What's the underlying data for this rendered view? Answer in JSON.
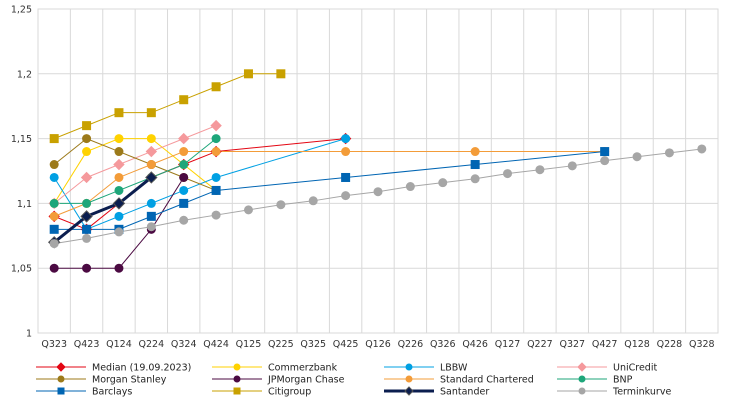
{
  "chart_data": {
    "type": "line",
    "title": "",
    "xlabel": "",
    "ylabel": "",
    "categories": [
      "Q323",
      "Q423",
      "Q124",
      "Q224",
      "Q324",
      "Q424",
      "Q125",
      "Q225",
      "Q325",
      "Q425",
      "Q126",
      "Q226",
      "Q326",
      "Q426",
      "Q127",
      "Q227",
      "Q327",
      "Q427",
      "Q128",
      "Q228",
      "Q328"
    ],
    "ylim": [
      1.0,
      1.25
    ],
    "yticks": [
      1.0,
      1.05,
      1.1,
      1.15,
      1.2,
      1.25
    ],
    "ytick_labels": [
      "1",
      "1,05",
      "1,1",
      "1,15",
      "1,2",
      "1,25"
    ],
    "grid": true,
    "legend_position": "bottom",
    "series": [
      {
        "name": "Median (19.09.2023)",
        "color": "#e30613",
        "marker": "diamond",
        "width": 1,
        "points": [
          [
            0,
            1.09
          ],
          [
            1,
            1.08
          ],
          [
            2,
            1.1
          ],
          [
            3,
            1.12
          ],
          [
            4,
            1.13
          ],
          [
            5,
            1.14
          ],
          [
            9,
            1.15
          ]
        ]
      },
      {
        "name": "Commerzbank",
        "color": "#ffd200",
        "marker": "circle",
        "width": 1,
        "points": [
          [
            0,
            1.1
          ],
          [
            1,
            1.14
          ],
          [
            2,
            1.15
          ],
          [
            3,
            1.15
          ],
          [
            4,
            1.13
          ],
          [
            5,
            1.11
          ]
        ]
      },
      {
        "name": "LBBW",
        "color": "#00a0e3",
        "marker": "circle",
        "width": 1,
        "points": [
          [
            0,
            1.12
          ],
          [
            1,
            1.08
          ],
          [
            2,
            1.09
          ],
          [
            3,
            1.1
          ],
          [
            4,
            1.11
          ],
          [
            5,
            1.12
          ],
          [
            9,
            1.15
          ]
        ]
      },
      {
        "name": "UniCredit",
        "color": "#f5999c",
        "marker": "diamond",
        "width": 1,
        "points": [
          [
            0,
            1.1
          ],
          [
            1,
            1.12
          ],
          [
            2,
            1.13
          ],
          [
            3,
            1.14
          ],
          [
            4,
            1.15
          ],
          [
            5,
            1.16
          ]
        ]
      },
      {
        "name": "Morgan Stanley",
        "color": "#9c7a1a",
        "marker": "circle",
        "width": 1,
        "points": [
          [
            0,
            1.13
          ],
          [
            1,
            1.15
          ],
          [
            2,
            1.14
          ],
          [
            3,
            1.13
          ],
          [
            4,
            1.12
          ],
          [
            5,
            1.11
          ]
        ]
      },
      {
        "name": "JPMorgan Chase",
        "color": "#4b0a42",
        "marker": "circle",
        "width": 1,
        "points": [
          [
            0,
            1.05
          ],
          [
            1,
            1.05
          ],
          [
            2,
            1.05
          ],
          [
            3,
            1.08
          ],
          [
            4,
            1.12
          ]
        ]
      },
      {
        "name": "Standard Chartered",
        "color": "#f39c39",
        "marker": "circle",
        "width": 1,
        "points": [
          [
            0,
            1.09
          ],
          [
            1,
            1.1
          ],
          [
            2,
            1.12
          ],
          [
            3,
            1.13
          ],
          [
            4,
            1.14
          ],
          [
            5,
            1.14
          ],
          [
            9,
            1.14
          ],
          [
            13,
            1.14
          ],
          [
            17,
            1.14
          ]
        ]
      },
      {
        "name": "BNP",
        "color": "#1ea67a",
        "marker": "circle",
        "width": 1,
        "points": [
          [
            0,
            1.1
          ],
          [
            1,
            1.1
          ],
          [
            2,
            1.11
          ],
          [
            3,
            1.12
          ],
          [
            4,
            1.13
          ],
          [
            5,
            1.15
          ]
        ]
      },
      {
        "name": "Barclays",
        "color": "#0065b3",
        "marker": "square",
        "width": 1,
        "points": [
          [
            0,
            1.08
          ],
          [
            1,
            1.08
          ],
          [
            2,
            1.08
          ],
          [
            3,
            1.09
          ],
          [
            4,
            1.1
          ],
          [
            5,
            1.11
          ],
          [
            9,
            1.12
          ],
          [
            13,
            1.13
          ],
          [
            17,
            1.14
          ]
        ]
      },
      {
        "name": "Citigroup",
        "color": "#c9a100",
        "marker": "square",
        "width": 1,
        "points": [
          [
            0,
            1.15
          ],
          [
            1,
            1.16
          ],
          [
            2,
            1.17
          ],
          [
            3,
            1.17
          ],
          [
            4,
            1.18
          ],
          [
            5,
            1.19
          ],
          [
            6,
            1.2
          ],
          [
            7,
            1.2
          ]
        ]
      },
      {
        "name": "Santander",
        "color": "#0b1e4f",
        "marker": "diamond",
        "width": 3,
        "points": [
          [
            0,
            1.07
          ],
          [
            1,
            1.09
          ],
          [
            2,
            1.1
          ],
          [
            3,
            1.12
          ]
        ]
      },
      {
        "name": "Terminkurve",
        "color": "#a6a6a6",
        "marker": "circle",
        "width": 1,
        "points": [
          [
            0,
            1.069
          ],
          [
            1,
            1.073
          ],
          [
            2,
            1.078
          ],
          [
            3,
            1.082
          ],
          [
            4,
            1.087
          ],
          [
            5,
            1.091
          ],
          [
            6,
            1.095
          ],
          [
            7,
            1.099
          ],
          [
            8,
            1.102
          ],
          [
            9,
            1.106
          ],
          [
            10,
            1.109
          ],
          [
            11,
            1.113
          ],
          [
            12,
            1.116
          ],
          [
            13,
            1.119
          ],
          [
            14,
            1.123
          ],
          [
            15,
            1.126
          ],
          [
            16,
            1.129
          ],
          [
            17,
            1.133
          ],
          [
            18,
            1.136
          ],
          [
            19,
            1.139
          ],
          [
            20,
            1.142
          ]
        ]
      }
    ]
  }
}
